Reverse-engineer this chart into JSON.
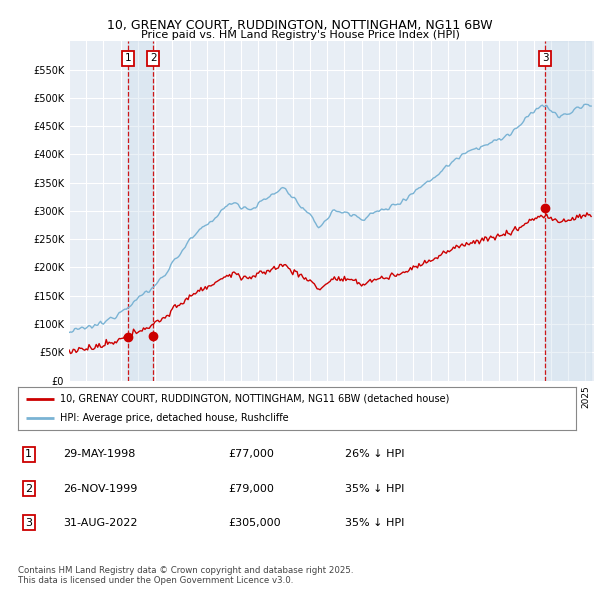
{
  "title": "10, GRENAY COURT, RUDDINGTON, NOTTINGHAM, NG11 6BW",
  "subtitle": "Price paid vs. HM Land Registry's House Price Index (HPI)",
  "background_color": "#ffffff",
  "plot_bg_color": "#e8eef5",
  "grid_color": "#ffffff",
  "hpi_color": "#7ab3d4",
  "price_color": "#cc0000",
  "sale_dates": [
    "1998-05-29",
    "1999-11-26",
    "2022-08-31"
  ],
  "sale_prices": [
    77000,
    79000,
    305000
  ],
  "sale_labels": [
    "1",
    "2",
    "3"
  ],
  "legend_line1": "10, GRENAY COURT, RUDDINGTON, NOTTINGHAM, NG11 6BW (detached house)",
  "legend_line2": "HPI: Average price, detached house, Rushcliffe",
  "table_rows": [
    [
      "1",
      "29-MAY-1998",
      "£77,000",
      "26% ↓ HPI"
    ],
    [
      "2",
      "26-NOV-1999",
      "£79,000",
      "35% ↓ HPI"
    ],
    [
      "3",
      "31-AUG-2022",
      "£305,000",
      "35% ↓ HPI"
    ]
  ],
  "footnote": "Contains HM Land Registry data © Crown copyright and database right 2025.\nThis data is licensed under the Open Government Licence v3.0.",
  "shade_color": "#c8daea"
}
